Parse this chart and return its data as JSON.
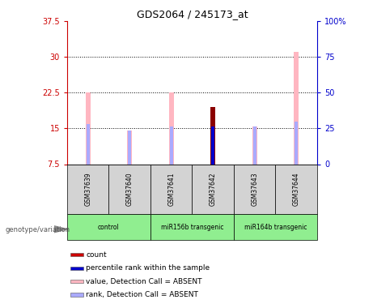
{
  "title": "GDS2064 / 245173_at",
  "samples": [
    "GSM37639",
    "GSM37640",
    "GSM37641",
    "GSM37642",
    "GSM37643",
    "GSM37644"
  ],
  "groups": [
    {
      "label": "control",
      "samples": [
        0,
        1
      ],
      "color": "#90EE90"
    },
    {
      "label": "miR156b transgenic",
      "samples": [
        2,
        3
      ],
      "color": "#90EE90"
    },
    {
      "label": "miR164b transgenic",
      "samples": [
        4,
        5
      ],
      "color": "#90EE90"
    }
  ],
  "ylim_left": [
    7.5,
    37.5
  ],
  "ylim_right": [
    0,
    100
  ],
  "yticks_left": [
    7.5,
    15.0,
    22.5,
    30.0,
    37.5
  ],
  "yticks_right": [
    0,
    25,
    50,
    75,
    100
  ],
  "ytick_labels_left": [
    "7.5",
    "15",
    "22.5",
    "30",
    "37.5"
  ],
  "ytick_labels_right": [
    "0",
    "25",
    "50",
    "75",
    "100%"
  ],
  "pink_bar_values": [
    22.5,
    14.5,
    22.5,
    19.5,
    15.5,
    31.0
  ],
  "lavender_bar_values": [
    16.0,
    14.5,
    15.5,
    15.5,
    15.5,
    16.5
  ],
  "dark_red_bar_value": 19.5,
  "dark_red_bar_index": 3,
  "blue_bar_value": 15.5,
  "blue_bar_index": 3,
  "bar_bottom": 7.5,
  "pink_bar_width": 0.12,
  "lav_bar_width": 0.08,
  "pink_color": "#FFB6C1",
  "lavender_color": "#AAAAFF",
  "dark_red_color": "#8B0000",
  "blue_color": "#0000CD",
  "left_axis_color": "#CC0000",
  "right_axis_color": "#0000CC",
  "sample_box_color": "#D3D3D3",
  "legend_items": [
    {
      "label": "count",
      "color": "#CC0000"
    },
    {
      "label": "percentile rank within the sample",
      "color": "#0000CD"
    },
    {
      "label": "value, Detection Call = ABSENT",
      "color": "#FFB6C1"
    },
    {
      "label": "rank, Detection Call = ABSENT",
      "color": "#AAAAFF"
    }
  ]
}
